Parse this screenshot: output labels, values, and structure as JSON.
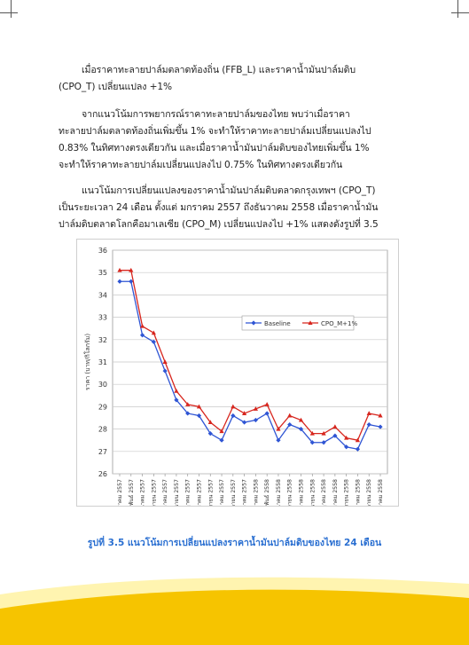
{
  "paragraphs": [
    [
      "เมื่อราคาทะลายปาล์มตลาดท้องถิ่น (FFB_L) และราคาน้ำมันปาล์มดิบ",
      "(CPO_T) เปลี่ยนแปลง +1%"
    ],
    [
      "จากแนวโน้มการพยากรณ์ราคาทะลายปาล์มของไทย พบว่าเมื่อราคา",
      "ทะลายปาล์มตลาดท้องถิ่นเพิ่มขึ้น 1% จะทำให้ราคาทะลายปาล์มเปลี่ยนแปลงไป",
      "0.83% ในทิศทางตรงเดียวกัน และเมื่อราคาน้ำมันปาล์มดิบของไทยเพิ่มขึ้น 1%",
      "จะทำให้ราคาทะลายปาล์มเปลี่ยนแปลงไป 0.75% ในทิศทางตรงเดียวกัน"
    ],
    [
      "แนวโน้มการเปลี่ยนแปลงของราคาน้ำมันปาล์มดิบตลาดกรุงเทพฯ (CPO_T)",
      "เป็นระยะเวลา 24 เดือน ตั้งแต่ มกราคม 2557 ถึงธันวาคม 2558 เมื่อราคาน้ำมัน",
      "ปาล์มดิบตลาดโลกคือมาเลเซีย (CPO_M) เปลี่ยนแปลงไป +1% แสดงดังรูปที่ 3.5"
    ]
  ],
  "caption": "รูปที่ 3.5 แนวโน้มการเปลี่ยนแปลงราคาน้ำมันปาล์มดิบของไทย 24 เดือน",
  "colors": {
    "baseline": "#2f55d4",
    "scenario": "#d7261e",
    "caption": "#2a6fd1",
    "footer_yellow": "#f6c400",
    "footer_light": "#fff4b0"
  },
  "chart_data": {
    "type": "line",
    "title": "",
    "xlabel": "",
    "ylabel": "ราคา (บาท/กิโลกรัม)",
    "ylim": [
      26,
      36
    ],
    "yticks": [
      26,
      27,
      28,
      29,
      30,
      31,
      32,
      33,
      34,
      35,
      36
    ],
    "grid": true,
    "legend": "right",
    "categories": [
      "มกราคม 2557",
      "กุมภาพันธ์ 2557",
      "มีนาคม 2557",
      "เมษายน 2557",
      "พฤษภาคม 2557",
      "มิถุนายน 2557",
      "กรกฎาคม 2557",
      "สิงหาคม 2557",
      "กันยายน 2557",
      "ตุลาคม 2557",
      "พฤศจิกายน 2557",
      "ธันวาคม 2557",
      "มกราคม 2558",
      "กุมภาพันธ์ 2558",
      "มีนาคม 2558",
      "เมษายน 2558",
      "พฤษภาคม 2558",
      "มิถุนายน 2558",
      "กรกฎาคม 2558",
      "สิงหาคม 2558",
      "กันยายน 2558",
      "ตุลาคม 2558",
      "พฤศจิกายน 2558",
      "ธันวาคม 2558"
    ],
    "series": [
      {
        "name": "Baseline",
        "values": [
          34.6,
          34.6,
          32.2,
          31.9,
          30.6,
          29.3,
          28.7,
          28.6,
          27.8,
          27.5,
          28.6,
          28.3,
          28.4,
          28.7,
          27.5,
          28.2,
          28.0,
          27.4,
          27.4,
          27.7,
          27.2,
          27.1,
          28.2,
          28.1
        ]
      },
      {
        "name": "CPO_M+1%",
        "values": [
          35.1,
          35.1,
          32.6,
          32.3,
          31.0,
          29.7,
          29.1,
          29.0,
          28.3,
          27.9,
          29.0,
          28.7,
          28.9,
          29.1,
          28.0,
          28.6,
          28.4,
          27.8,
          27.8,
          28.1,
          27.6,
          27.5,
          28.7,
          28.6
        ]
      }
    ]
  }
}
